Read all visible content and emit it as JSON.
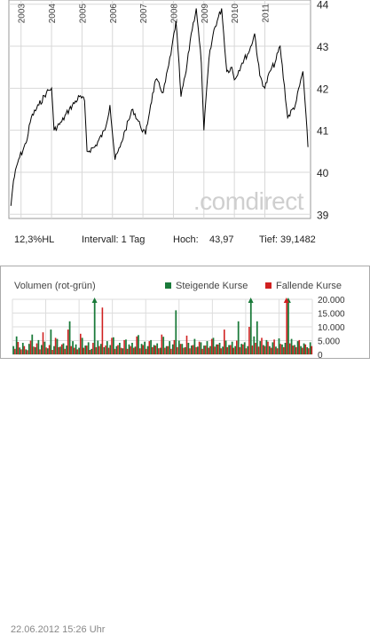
{
  "chart_data": [
    {
      "type": "line",
      "x_tick_labels": [
        "2003",
        "2004",
        "2005",
        "2006",
        "2007",
        "2008",
        "2009",
        "2010",
        "2011"
      ],
      "x": [
        "2002-09",
        "2002-10",
        "2002-12",
        "2003-03",
        "2003-05",
        "2003-08",
        "2003-11",
        "2004-01",
        "2004-02",
        "2004-05",
        "2004-08",
        "2004-12",
        "2005-02",
        "2005-03",
        "2005-06",
        "2005-10",
        "2005-12",
        "2006-02",
        "2006-04",
        "2006-06",
        "2006-09",
        "2006-12",
        "2007-02",
        "2007-04",
        "2007-06",
        "2007-09",
        "2007-12",
        "2008-02",
        "2008-04",
        "2008-06",
        "2008-08",
        "2008-10",
        "2008-12",
        "2009-01",
        "2009-03",
        "2009-05",
        "2009-08",
        "2009-10",
        "2009-12",
        "2010-01",
        "2010-04",
        "2010-07",
        "2010-09",
        "2010-11",
        "2011-01",
        "2011-03",
        "2011-05",
        "2011-07",
        "2011-10",
        "2012-01",
        "2012-04",
        "2012-06"
      ],
      "values": [
        39.2,
        39.8,
        40.3,
        40.7,
        41.3,
        41.6,
        41.9,
        42.0,
        41.0,
        41.2,
        41.5,
        41.8,
        41.7,
        40.5,
        40.6,
        41.0,
        41.6,
        40.3,
        40.6,
        41.0,
        41.5,
        41.1,
        40.9,
        41.6,
        42.2,
        41.9,
        42.8,
        43.6,
        41.8,
        42.4,
        43.3,
        43.9,
        42.6,
        41.0,
        42.7,
        43.4,
        43.9,
        42.4,
        42.5,
        42.2,
        42.6,
        42.9,
        43.3,
        42.3,
        42.0,
        42.4,
        42.6,
        43.0,
        41.3,
        41.6,
        42.4,
        40.6
      ],
      "y_ticks": [
        39,
        40,
        41,
        42,
        43,
        44
      ],
      "ylim": [
        38.9,
        44.1
      ],
      "grid": true,
      "watermark": ".comdirect",
      "stats": {
        "range": "12,3%HL",
        "interval": "Intervall: 1 Tag",
        "high_label": "Hoch:",
        "high_value": "43,97",
        "low": "Tief: 39,1482"
      }
    },
    {
      "type": "bar",
      "title": "Volumen (rot-grün)",
      "legend": [
        {
          "name": "Steigende Kurse",
          "color": "#1a7a3a"
        },
        {
          "name": "Fallende Kurse",
          "color": "#d02020"
        }
      ],
      "legend_position": "top-right",
      "y_ticks": [
        0,
        5000,
        10000,
        15000,
        20000
      ],
      "y_tick_labels": [
        "0",
        "5.000",
        "10.000",
        "15.000",
        "20.000"
      ],
      "ylim": [
        0,
        20000
      ],
      "up_values": [
        3000,
        6500,
        2500,
        4200,
        1800,
        3800,
        7200,
        2600,
        5200,
        3400,
        4600,
        2200,
        9000,
        3000,
        5600,
        2800,
        4000,
        3200,
        12000,
        4800,
        3600,
        2400,
        6000,
        3200,
        4400,
        2000,
        20000,
        5000,
        3800,
        2600,
        4800,
        3400,
        6200,
        3000,
        4200,
        2200,
        5400,
        3600,
        4200,
        2800,
        7000,
        3800,
        4600,
        3000,
        5200,
        3400,
        4000,
        2400,
        6400,
        3000,
        4800,
        3600,
        16000,
        5000,
        3800,
        2600,
        4200,
        3200,
        5600,
        2800,
        4400,
        3200,
        4800,
        3000,
        6000,
        3600,
        4200,
        2800,
        5000,
        3400,
        4600,
        3000,
        12000,
        3800,
        4400,
        3000,
        20000,
        6500,
        12000,
        4800,
        3400,
        5200,
        3000,
        4400,
        2800,
        5800,
        3600,
        4200,
        20000,
        5600,
        3400,
        4800,
        3000,
        4000,
        2600,
        4400
      ],
      "down_values": [
        2000,
        4500,
        1800,
        3000,
        1500,
        5000,
        2800,
        4000,
        1800,
        8000,
        2500,
        3400,
        1600,
        6000,
        2600,
        3600,
        2000,
        9000,
        3000,
        2400,
        1800,
        7500,
        2400,
        3200,
        1600,
        4200,
        2600,
        3000,
        17000,
        3200,
        2400,
        6000,
        2000,
        3400,
        2400,
        5200,
        2000,
        3000,
        2400,
        6500,
        2200,
        3400,
        2000,
        4800,
        2600,
        3200,
        2200,
        7200,
        2400,
        3000,
        2000,
        5200,
        2600,
        3800,
        2400,
        6800,
        2200,
        3400,
        2600,
        4600,
        2000,
        3200,
        2400,
        5600,
        2800,
        3600,
        2200,
        9000,
        2600,
        3400,
        2400,
        5000,
        2600,
        3600,
        2200,
        10000,
        3200,
        4200,
        2800,
        6000,
        3000,
        4600,
        2400,
        5400,
        2200,
        3800,
        2600,
        20000,
        4000,
        3200,
        2600,
        5200,
        2400,
        3600,
        2200,
        3000
      ],
      "peak_up_markers": [
        26,
        76,
        88
      ],
      "peak_down_markers": [
        87
      ]
    }
  ],
  "timestamp": "22.06.2012 15:26 Uhr"
}
